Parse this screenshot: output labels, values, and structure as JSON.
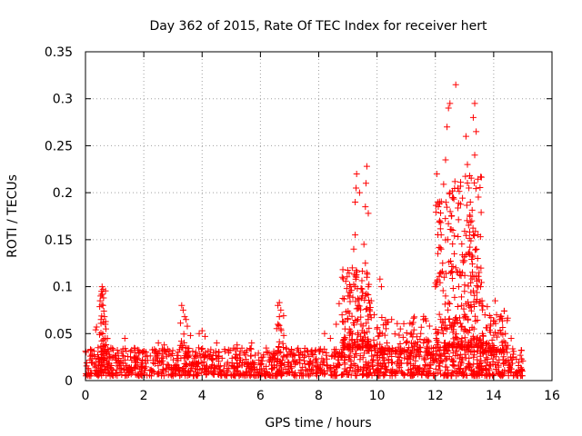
{
  "chart_data": {
    "type": "scatter",
    "title": "Day 362 of 2015, Rate Of TEC Index for receiver hert",
    "xlabel": "GPS time / hours",
    "ylabel": "ROTI / TECUs",
    "xlim": [
      0,
      16
    ],
    "ylim": [
      0,
      0.35
    ],
    "x_ticks": [
      "0",
      "2",
      "4",
      "6",
      "8",
      "10",
      "12",
      "14",
      "16"
    ],
    "y_ticks": [
      "0",
      "0.05",
      "0.1",
      "0.15",
      "0.2",
      "0.25",
      "0.3",
      "0.35"
    ],
    "grid": true,
    "marker": "+",
    "colors": {
      "series": "#ff0000",
      "grid": "#a0a0a0",
      "axis": "#000000"
    },
    "baseline": {
      "x_range": [
        0,
        15
      ],
      "y_range": [
        0.005,
        0.035
      ],
      "count": 1400
    },
    "points": [
      {
        "x": 0.35,
        "y": 0.054
      },
      {
        "x": 0.38,
        "y": 0.057
      },
      {
        "x": 0.5,
        "y": 0.085
      },
      {
        "x": 0.52,
        "y": 0.09
      },
      {
        "x": 0.55,
        "y": 0.095
      },
      {
        "x": 0.57,
        "y": 0.1
      },
      {
        "x": 0.58,
        "y": 0.092
      },
      {
        "x": 0.6,
        "y": 0.097
      },
      {
        "x": 0.6,
        "y": 0.08
      },
      {
        "x": 0.62,
        "y": 0.088
      },
      {
        "x": 0.63,
        "y": 0.074
      },
      {
        "x": 0.65,
        "y": 0.068
      },
      {
        "x": 0.68,
        "y": 0.06
      },
      {
        "x": 0.7,
        "y": 0.055
      },
      {
        "x": 0.75,
        "y": 0.045
      },
      {
        "x": 1.35,
        "y": 0.045
      },
      {
        "x": 2.5,
        "y": 0.04
      },
      {
        "x": 2.7,
        "y": 0.038
      },
      {
        "x": 3.3,
        "y": 0.08
      },
      {
        "x": 3.35,
        "y": 0.075
      },
      {
        "x": 3.4,
        "y": 0.068
      },
      {
        "x": 3.45,
        "y": 0.065
      },
      {
        "x": 3.6,
        "y": 0.048
      },
      {
        "x": 3.9,
        "y": 0.05
      },
      {
        "x": 4.0,
        "y": 0.053
      },
      {
        "x": 4.1,
        "y": 0.047
      },
      {
        "x": 4.5,
        "y": 0.04
      },
      {
        "x": 5.2,
        "y": 0.038
      },
      {
        "x": 5.7,
        "y": 0.04
      },
      {
        "x": 6.6,
        "y": 0.08
      },
      {
        "x": 6.65,
        "y": 0.083
      },
      {
        "x": 6.7,
        "y": 0.075
      },
      {
        "x": 6.65,
        "y": 0.068
      },
      {
        "x": 6.6,
        "y": 0.06
      },
      {
        "x": 6.7,
        "y": 0.055
      },
      {
        "x": 6.8,
        "y": 0.048
      },
      {
        "x": 7.6,
        "y": 0.032
      },
      {
        "x": 8.2,
        "y": 0.05
      },
      {
        "x": 8.4,
        "y": 0.045
      },
      {
        "x": 8.6,
        "y": 0.06
      },
      {
        "x": 8.7,
        "y": 0.082
      },
      {
        "x": 8.8,
        "y": 0.07
      },
      {
        "x": 8.9,
        "y": 0.055
      },
      {
        "x": 9.0,
        "y": 0.065
      },
      {
        "x": 9.05,
        "y": 0.09
      },
      {
        "x": 9.1,
        "y": 0.1
      },
      {
        "x": 9.15,
        "y": 0.12
      },
      {
        "x": 9.2,
        "y": 0.14
      },
      {
        "x": 9.25,
        "y": 0.155
      },
      {
        "x": 9.25,
        "y": 0.19
      },
      {
        "x": 9.28,
        "y": 0.205
      },
      {
        "x": 9.3,
        "y": 0.22
      },
      {
        "x": 9.35,
        "y": 0.08
      },
      {
        "x": 9.4,
        "y": 0.2
      },
      {
        "x": 9.45,
        "y": 0.06
      },
      {
        "x": 9.5,
        "y": 0.09
      },
      {
        "x": 9.55,
        "y": 0.145
      },
      {
        "x": 9.6,
        "y": 0.185
      },
      {
        "x": 9.62,
        "y": 0.21
      },
      {
        "x": 9.65,
        "y": 0.228
      },
      {
        "x": 9.7,
        "y": 0.178
      },
      {
        "x": 9.6,
        "y": 0.125
      },
      {
        "x": 9.65,
        "y": 0.11
      },
      {
        "x": 9.7,
        "y": 0.1
      },
      {
        "x": 9.8,
        "y": 0.085
      },
      {
        "x": 9.9,
        "y": 0.07
      },
      {
        "x": 10.0,
        "y": 0.055
      },
      {
        "x": 10.1,
        "y": 0.108
      },
      {
        "x": 10.15,
        "y": 0.1
      },
      {
        "x": 10.3,
        "y": 0.06
      },
      {
        "x": 10.5,
        "y": 0.065
      },
      {
        "x": 10.8,
        "y": 0.055
      },
      {
        "x": 11.2,
        "y": 0.06
      },
      {
        "x": 11.5,
        "y": 0.05
      },
      {
        "x": 11.8,
        "y": 0.058
      },
      {
        "x": 12.0,
        "y": 0.1
      },
      {
        "x": 12.05,
        "y": 0.22
      },
      {
        "x": 12.1,
        "y": 0.185
      },
      {
        "x": 12.15,
        "y": 0.17
      },
      {
        "x": 12.2,
        "y": 0.155
      },
      {
        "x": 12.2,
        "y": 0.14
      },
      {
        "x": 12.25,
        "y": 0.125
      },
      {
        "x": 12.3,
        "y": 0.11
      },
      {
        "x": 12.35,
        "y": 0.09
      },
      {
        "x": 12.35,
        "y": 0.235
      },
      {
        "x": 12.4,
        "y": 0.27
      },
      {
        "x": 12.45,
        "y": 0.29
      },
      {
        "x": 12.5,
        "y": 0.295
      },
      {
        "x": 12.5,
        "y": 0.2
      },
      {
        "x": 12.55,
        "y": 0.175
      },
      {
        "x": 12.6,
        "y": 0.16
      },
      {
        "x": 12.65,
        "y": 0.135
      },
      {
        "x": 12.7,
        "y": 0.315
      },
      {
        "x": 12.7,
        "y": 0.12
      },
      {
        "x": 12.8,
        "y": 0.1
      },
      {
        "x": 12.9,
        "y": 0.08
      },
      {
        "x": 13.0,
        "y": 0.095
      },
      {
        "x": 13.05,
        "y": 0.26
      },
      {
        "x": 13.1,
        "y": 0.23
      },
      {
        "x": 13.15,
        "y": 0.205
      },
      {
        "x": 13.2,
        "y": 0.19
      },
      {
        "x": 13.25,
        "y": 0.17
      },
      {
        "x": 13.3,
        "y": 0.155
      },
      {
        "x": 13.3,
        "y": 0.28
      },
      {
        "x": 13.35,
        "y": 0.295
      },
      {
        "x": 13.35,
        "y": 0.24
      },
      {
        "x": 13.4,
        "y": 0.265
      },
      {
        "x": 13.4,
        "y": 0.14
      },
      {
        "x": 13.45,
        "y": 0.13
      },
      {
        "x": 13.5,
        "y": 0.115
      },
      {
        "x": 13.55,
        "y": 0.1
      },
      {
        "x": 13.6,
        "y": 0.085
      },
      {
        "x": 13.7,
        "y": 0.07
      },
      {
        "x": 13.9,
        "y": 0.06
      },
      {
        "x": 14.05,
        "y": 0.085
      },
      {
        "x": 14.1,
        "y": 0.07
      },
      {
        "x": 14.2,
        "y": 0.065
      },
      {
        "x": 14.4,
        "y": 0.05
      },
      {
        "x": 14.6,
        "y": 0.045
      }
    ],
    "clusters": [
      {
        "x": [
          0.45,
          0.75
        ],
        "y": [
          0.03,
          0.1
        ],
        "count": 30
      },
      {
        "x": [
          3.25,
          3.5
        ],
        "y": [
          0.035,
          0.07
        ],
        "count": 10
      },
      {
        "x": [
          6.55,
          6.8
        ],
        "y": [
          0.035,
          0.07
        ],
        "count": 10
      },
      {
        "x": [
          8.8,
          9.8
        ],
        "y": [
          0.035,
          0.12
        ],
        "count": 160
      },
      {
        "x": [
          9.8,
          11.8
        ],
        "y": [
          0.03,
          0.07
        ],
        "count": 100
      },
      {
        "x": [
          12.0,
          13.6
        ],
        "y": [
          0.035,
          0.22
        ],
        "count": 300
      },
      {
        "x": [
          13.6,
          14.5
        ],
        "y": [
          0.03,
          0.08
        ],
        "count": 80
      }
    ]
  }
}
